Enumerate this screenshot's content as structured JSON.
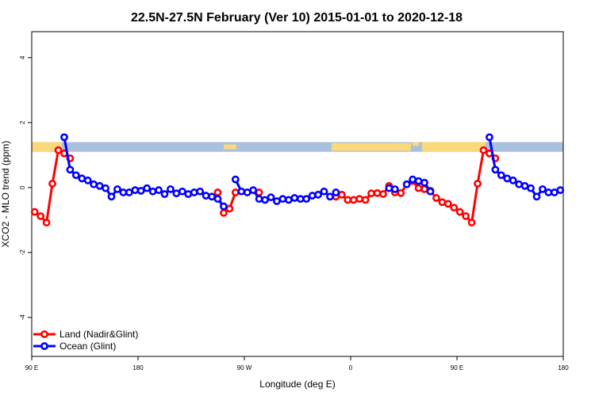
{
  "chart_data": {
    "type": "line",
    "title": "22.5N-27.5N February (Ver 10)   2015-01-01 to 2020-12-18",
    "xlabel": "Longitude (deg E)",
    "ylabel": "XCO2 - MLO trend (ppm)",
    "xlim": [
      90,
      540
    ],
    "ylim": [
      -5.2,
      4.8
    ],
    "x_ticks": [
      {
        "value": 90,
        "label": "90 E"
      },
      {
        "value": 180,
        "label": "180"
      },
      {
        "value": 270,
        "label": "90 W"
      },
      {
        "value": 360,
        "label": "0"
      },
      {
        "value": 450,
        "label": "90 E"
      },
      {
        "value": 540,
        "label": "180"
      }
    ],
    "y_ticks": [
      {
        "value": 4,
        "label": "4"
      },
      {
        "value": 2,
        "label": "2"
      },
      {
        "value": 0,
        "label": "0"
      },
      {
        "value": -2,
        "label": "-2"
      },
      {
        "value": -4,
        "label": "-4"
      }
    ],
    "legend_position": "bottom-left",
    "map_strip": {
      "y_range": [
        1.1,
        1.4
      ],
      "ocean_color": "#a9c1dd",
      "land_color": "#f9d97c"
    },
    "series": [
      {
        "name": "Land (Nadir&Glint)",
        "color": "#ff0000",
        "segments": [
          [
            [
              92.5,
              -0.75
            ],
            [
              97.5,
              -0.88
            ],
            [
              102.5,
              -1.08
            ],
            [
              107.5,
              0.12
            ],
            [
              112.5,
              1.15
            ],
            [
              117.5,
              1.05
            ],
            [
              122.5,
              0.9
            ]
          ],
          [
            [
              247.5,
              -0.15
            ],
            [
              252.5,
              -0.78
            ],
            [
              257.5,
              -0.65
            ],
            [
              262.5,
              -0.15
            ]
          ],
          [
            [
              282.5,
              -0.15
            ]
          ],
          [
            [
              347.5,
              -0.28
            ],
            [
              352.5,
              -0.22
            ],
            [
              357.5,
              -0.38
            ],
            [
              362.5,
              -0.38
            ],
            [
              367.5,
              -0.35
            ],
            [
              372.5,
              -0.38
            ],
            [
              377.5,
              -0.18
            ],
            [
              382.5,
              -0.17
            ],
            [
              387.5,
              -0.2
            ],
            [
              392.5,
              0.05
            ],
            [
              397.5,
              -0.15
            ],
            [
              402.5,
              -0.17
            ],
            [
              407.5,
              0.1
            ],
            [
              412.5,
              0.2
            ],
            [
              417.5,
              -0.02
            ],
            [
              422.5,
              -0.05
            ],
            [
              427.5,
              -0.1
            ],
            [
              432.5,
              -0.32
            ],
            [
              437.5,
              -0.45
            ],
            [
              442.5,
              -0.5
            ],
            [
              447.5,
              -0.62
            ],
            [
              452.5,
              -0.75
            ],
            [
              457.5,
              -0.88
            ],
            [
              462.5,
              -1.08
            ],
            [
              467.5,
              0.12
            ],
            [
              472.5,
              1.15
            ],
            [
              477.5,
              1.05
            ],
            [
              482.5,
              0.9
            ]
          ]
        ]
      },
      {
        "name": "Ocean (Glint)",
        "color": "#0000ff",
        "segments": [
          [
            [
              117.5,
              1.55
            ],
            [
              122.5,
              0.55
            ],
            [
              127.5,
              0.38
            ],
            [
              132.5,
              0.28
            ],
            [
              137.5,
              0.22
            ],
            [
              142.5,
              0.1
            ],
            [
              147.5,
              0.05
            ],
            [
              152.5,
              -0.02
            ],
            [
              157.5,
              -0.28
            ],
            [
              162.5,
              -0.05
            ],
            [
              167.5,
              -0.15
            ],
            [
              172.5,
              -0.15
            ],
            [
              177.5,
              -0.08
            ],
            [
              182.5,
              -0.1
            ],
            [
              187.5,
              -0.02
            ],
            [
              192.5,
              -0.12
            ],
            [
              197.5,
              -0.08
            ],
            [
              202.5,
              -0.2
            ],
            [
              207.5,
              -0.05
            ],
            [
              212.5,
              -0.18
            ],
            [
              217.5,
              -0.12
            ],
            [
              222.5,
              -0.2
            ],
            [
              227.5,
              -0.15
            ],
            [
              232.5,
              -0.12
            ],
            [
              237.5,
              -0.25
            ],
            [
              242.5,
              -0.28
            ],
            [
              247.5,
              -0.35
            ],
            [
              252.5,
              -0.58
            ]
          ],
          [
            [
              262.5,
              0.25
            ],
            [
              267.5,
              -0.12
            ],
            [
              272.5,
              -0.15
            ],
            [
              277.5,
              -0.08
            ],
            [
              282.5,
              -0.35
            ],
            [
              287.5,
              -0.38
            ],
            [
              292.5,
              -0.3
            ],
            [
              297.5,
              -0.42
            ],
            [
              302.5,
              -0.35
            ],
            [
              307.5,
              -0.38
            ],
            [
              312.5,
              -0.32
            ],
            [
              317.5,
              -0.35
            ],
            [
              322.5,
              -0.35
            ],
            [
              327.5,
              -0.25
            ],
            [
              332.5,
              -0.22
            ],
            [
              337.5,
              -0.12
            ],
            [
              342.5,
              -0.28
            ],
            [
              347.5,
              -0.15
            ]
          ],
          [
            [
              392.5,
              -0.02
            ],
            [
              397.5,
              -0.05
            ]
          ],
          [
            [
              407.5,
              0.1
            ],
            [
              412.5,
              0.25
            ],
            [
              417.5,
              0.2
            ],
            [
              422.5,
              0.15
            ],
            [
              427.5,
              -0.12
            ]
          ],
          [
            [
              477.5,
              1.55
            ],
            [
              482.5,
              0.55
            ],
            [
              487.5,
              0.38
            ],
            [
              492.5,
              0.28
            ],
            [
              497.5,
              0.22
            ],
            [
              502.5,
              0.1
            ],
            [
              507.5,
              0.05
            ],
            [
              512.5,
              -0.02
            ],
            [
              517.5,
              -0.28
            ],
            [
              522.5,
              -0.05
            ],
            [
              527.5,
              -0.15
            ],
            [
              532.5,
              -0.15
            ],
            [
              537.5,
              -0.08
            ]
          ]
        ]
      }
    ]
  }
}
